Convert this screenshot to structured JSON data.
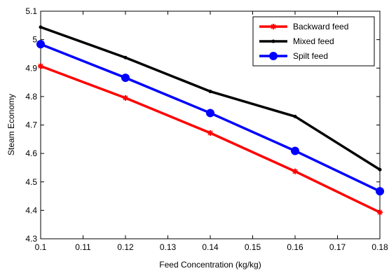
{
  "chart_data": {
    "type": "line",
    "title": "",
    "xlabel": "Feed Concentration (kg/kg)",
    "ylabel": "Steam Economy",
    "xlim": [
      0.1,
      0.18
    ],
    "ylim": [
      4.3,
      5.1
    ],
    "xticks": [
      "0.1",
      "0.11",
      "0.12",
      "0.13",
      "0.14",
      "0.15",
      "0.16",
      "0.17",
      "0.18"
    ],
    "yticks": [
      "4.3",
      "4.4",
      "4.5",
      "4.6",
      "4.7",
      "4.8",
      "4.9",
      "5",
      "5.1"
    ],
    "grid": false,
    "legend_position": "top-right",
    "x": [
      0.1,
      0.12,
      0.14,
      0.16,
      0.18
    ],
    "series": [
      {
        "name": "Backward feed",
        "color": "#ff0000",
        "marker": "star",
        "values": [
          4.907,
          4.795,
          4.672,
          4.537,
          4.393
        ]
      },
      {
        "name": "Mixed feed",
        "color": "#000000",
        "marker": "dot",
        "values": [
          5.044,
          4.937,
          4.818,
          4.73,
          4.543
        ]
      },
      {
        "name": "Spilt feed",
        "color": "#0000ff",
        "marker": "circle",
        "values": [
          4.984,
          4.866,
          4.742,
          4.609,
          4.467
        ]
      }
    ]
  }
}
